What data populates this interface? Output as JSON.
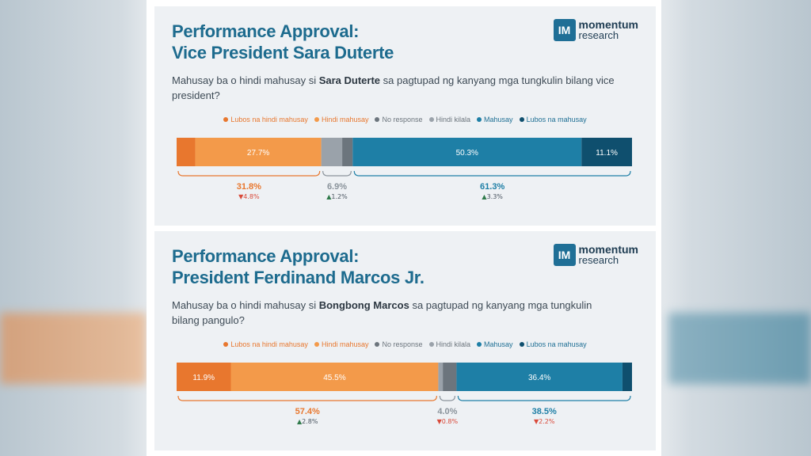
{
  "legend": [
    {
      "label": "Lubos na hindi mahusay",
      "color": "#e8772e"
    },
    {
      "label": "Hindi mahusay",
      "color": "#f39a4a"
    },
    {
      "label": "No response",
      "color": "#6c757d"
    },
    {
      "label": "Hindi kilala",
      "color": "#9aa2aa"
    },
    {
      "label": "Mahusay",
      "color": "#1e7fa6"
    },
    {
      "label": "Lubos na mahusay",
      "color": "#0f4f6e"
    }
  ],
  "logo": {
    "mark": "IM",
    "line1": "momentum",
    "line2": "research"
  },
  "chart_data": [
    {
      "type": "bar",
      "title": "Performance Approval:\nVice President Sara Duterte",
      "question_pre": "Mahusay ba o hindi mahusay si ",
      "question_name": "Sara Duterte",
      "question_post": " sa pagtupad ng kanyang mga tungkulin bilang vice president?",
      "orientation": "horizontal-stacked",
      "segments": [
        {
          "category": "Lubos na hindi mahusay",
          "value": 4.1,
          "label": ""
        },
        {
          "category": "Hindi mahusay",
          "value": 27.7,
          "label": "27.7%"
        },
        {
          "category": "Hindi kilala",
          "value": 4.6,
          "label": ""
        },
        {
          "category": "No response",
          "value": 2.3,
          "label": ""
        },
        {
          "category": "Mahusay",
          "value": 50.3,
          "label": "50.3%"
        },
        {
          "category": "Lubos na mahusay",
          "value": 11.1,
          "label": "11.1%"
        }
      ],
      "groups": [
        {
          "value": "31.8%",
          "change": "4.8%",
          "direction": "down",
          "from": 0,
          "to": 4
        },
        {
          "value": "6.9%",
          "change": "1.2%",
          "direction": "up",
          "from": 4,
          "to": 6
        },
        {
          "value": "61.3%",
          "change": "3.3%",
          "direction": "up",
          "from": 6,
          "to": 10
        }
      ]
    },
    {
      "type": "bar",
      "title": "Performance Approval:\nPresident Ferdinand Marcos Jr.",
      "question_pre": "Mahusay ba o hindi mahusay si ",
      "question_name": "Bongbong Marcos",
      "question_post": " sa pagtupad ng kanyang mga tungkulin bilang pangulo?",
      "orientation": "horizontal-stacked",
      "segments": [
        {
          "category": "Lubos na hindi mahusay",
          "value": 11.9,
          "label": "11.9%"
        },
        {
          "category": "Hindi mahusay",
          "value": 45.5,
          "label": "45.5%"
        },
        {
          "category": "Hindi kilala",
          "value": 1.0,
          "label": ""
        },
        {
          "category": "No response",
          "value": 3.0,
          "label": ""
        },
        {
          "category": "Mahusay",
          "value": 36.4,
          "label": "36.4%"
        },
        {
          "category": "Lubos na mahusay",
          "value": 2.1,
          "label": ""
        }
      ],
      "groups": [
        {
          "value": "57.4%",
          "change": "2.8%",
          "direction": "up",
          "from": 0,
          "to": 2
        },
        {
          "value": "4.0%",
          "change": "0.8%",
          "direction": "down",
          "from": 2,
          "to": 4
        },
        {
          "value": "38.5%",
          "change": "2.2%",
          "direction": "down",
          "from": 4,
          "to": 6
        }
      ]
    }
  ]
}
